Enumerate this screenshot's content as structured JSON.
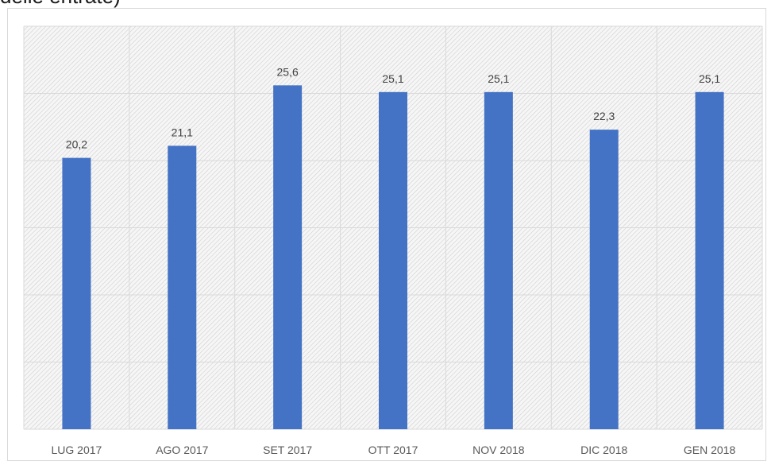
{
  "header": {
    "cut_text": "delle entrate)"
  },
  "colors": {
    "bar": "#4472c4",
    "grid": "#d9d9d9",
    "hatch": "#c8c8c8"
  },
  "chart_data": {
    "type": "bar",
    "title": "",
    "xlabel": "",
    "ylabel": "",
    "categories": [
      "LUG 2017",
      "AGO 2017",
      "SET 2017",
      "OTT 2017",
      "NOV 2018",
      "DIC 2018",
      "GEN 2018"
    ],
    "values": [
      20.2,
      21.1,
      25.6,
      25.1,
      25.1,
      22.3,
      25.1
    ],
    "data_labels": [
      "20,2",
      "21,1",
      "25,6",
      "25,1",
      "25,1",
      "22,3",
      "25,1"
    ],
    "ylim": [
      0,
      30
    ],
    "grid": true,
    "legend": "none"
  }
}
